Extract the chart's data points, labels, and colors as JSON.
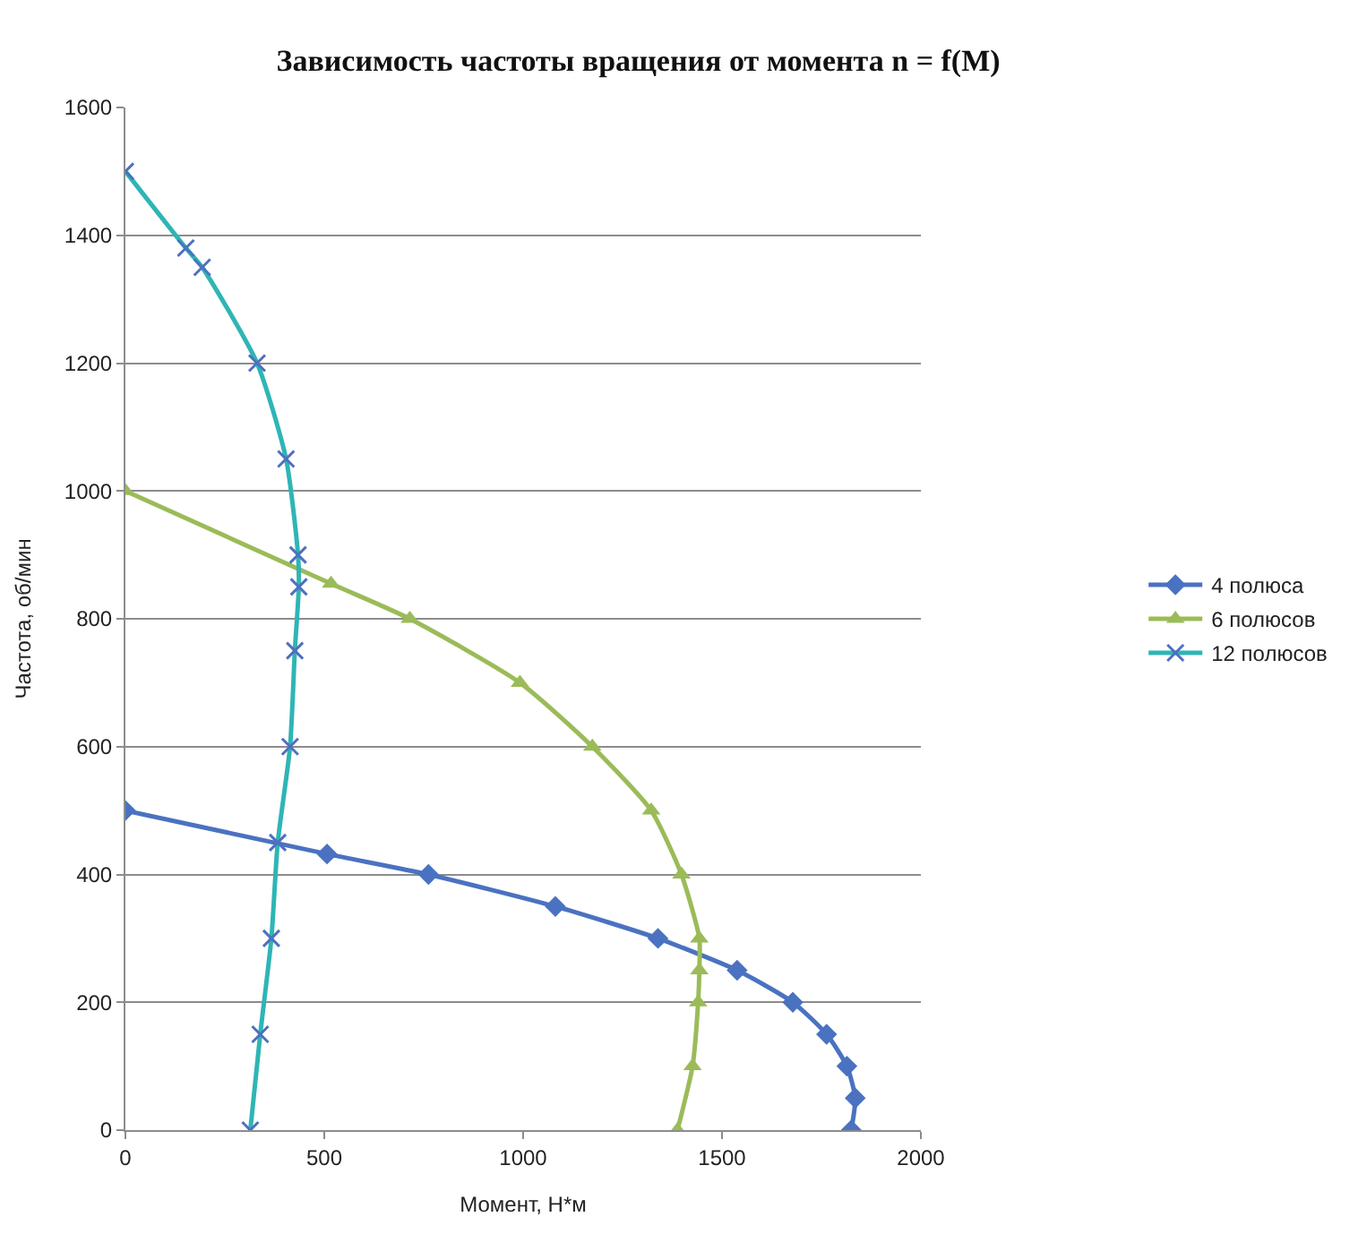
{
  "chart_data": {
    "type": "line",
    "title": "Зависимость частоты вращения от момента n = f(M)",
    "xlabel": "Момент, Н*м",
    "ylabel": "Частота, об/мин",
    "xlim": [
      0,
      2000
    ],
    "xticks": [
      0,
      500,
      1000,
      1500,
      2000
    ],
    "ylim": [
      0,
      1600
    ],
    "yticks": [
      0,
      200,
      400,
      600,
      800,
      1000,
      1200,
      1400,
      1600
    ],
    "grid": "y",
    "legend": "right",
    "series": [
      {
        "name": "4 полюса",
        "color": "#4a72c0",
        "marker": "diamond",
        "x": [
          0,
          507,
          762,
          1081,
          1339,
          1538,
          1678,
          1763,
          1814,
          1835,
          1825
        ],
        "values": [
          500,
          432,
          400,
          350,
          300,
          250,
          200,
          150,
          100,
          50,
          0
        ]
      },
      {
        "name": "6 полюсов",
        "color": "#9bbb59",
        "marker": "triangle",
        "x": [
          0,
          517,
          715,
          992,
          1174,
          1322,
          1398,
          1443,
          1443,
          1440,
          1426,
          1388
        ],
        "values": [
          1000,
          855,
          800,
          700,
          600,
          500,
          400,
          300,
          250,
          200,
          100,
          0
        ]
      },
      {
        "name": "12 полюсов",
        "color": "#2fb5b5",
        "marker": "cross",
        "x": [
          0,
          152,
          193,
          331,
          404,
          434,
          436,
          426,
          414,
          383,
          367,
          339,
          314
        ],
        "values": [
          1500,
          1380,
          1350,
          1200,
          1050,
          900,
          850,
          750,
          600,
          450,
          300,
          150,
          0
        ]
      }
    ]
  }
}
